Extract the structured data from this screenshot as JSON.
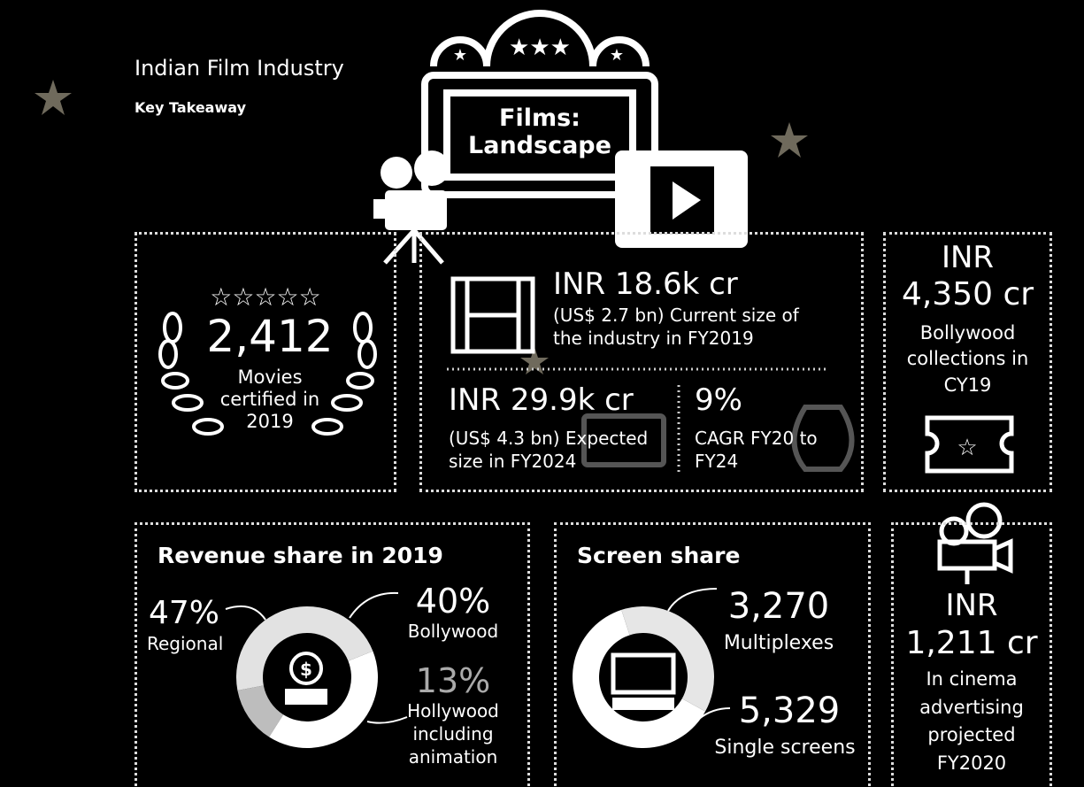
{
  "header": {
    "title": "Indian Film Industry",
    "subtitle": "Key Takeaway",
    "badge": "Films: Landscape"
  },
  "movies": {
    "value": "2,412",
    "label": "Movies certified in 2019"
  },
  "industry": {
    "current_value": "INR 18.6k cr",
    "current_label": "(US$ 2.7 bn) Current size of the industry in FY2019",
    "expected_value": "INR 29.9k cr",
    "expected_label": "(US$ 4.3 bn) Expected size in FY2024",
    "cagr_value": "9%",
    "cagr_label": "CAGR FY20 to FY24"
  },
  "bollywood": {
    "currency": "INR",
    "value": "4,350 cr",
    "label": "Bollywood collections in CY19"
  },
  "revenue_share": {
    "title": "Revenue share in 2019",
    "categories": [
      "Regional",
      "Bollywood",
      "Hollywood including animation"
    ],
    "values": [
      47,
      40,
      13
    ],
    "value_labels": [
      "47%",
      "40%",
      "13%"
    ],
    "colors": [
      "#e2e2e2",
      "#ffffff",
      "#bdbdbd"
    ]
  },
  "screen_share": {
    "title": "Screen share",
    "categories": [
      "Multiplexes",
      "Single screens"
    ],
    "values": [
      3270,
      5329
    ],
    "value_labels": [
      "3,270",
      "5,329"
    ],
    "colors": [
      "#e6e6e6",
      "#ffffff"
    ]
  },
  "advertising": {
    "currency": "INR",
    "value": "1,211 cr",
    "label": "In cinema advertising projected FY2020"
  }
}
